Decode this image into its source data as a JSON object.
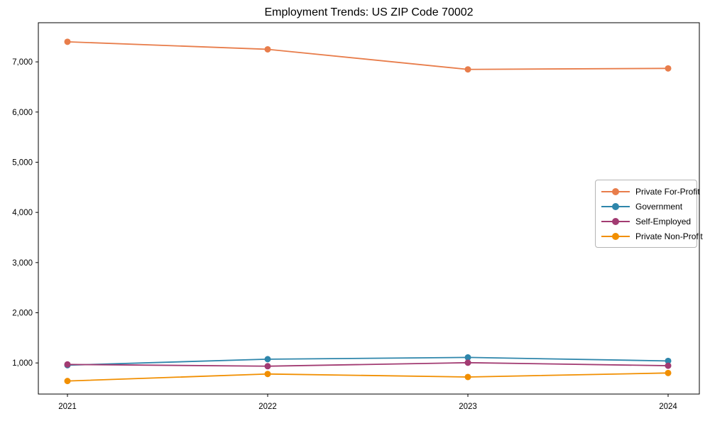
{
  "title": "Employment Trends: US ZIP Code 70002",
  "chart_data": {
    "type": "line",
    "title": "Employment Trends: US ZIP Code 70002",
    "x": [
      2021,
      2022,
      2023,
      2024
    ],
    "xtick_labels": [
      "2021",
      "2022",
      "2023",
      "2024"
    ],
    "series": [
      {
        "name": "Private For-Profit",
        "color": "#E87D4B",
        "values": [
          7400,
          7250,
          6850,
          6870
        ]
      },
      {
        "name": "Government",
        "color": "#2E86AB",
        "values": [
          955,
          1075,
          1110,
          1040
        ]
      },
      {
        "name": "Self-Employed",
        "color": "#A23B72",
        "values": [
          970,
          935,
          1005,
          945
        ]
      },
      {
        "name": "Private Non-Profit",
        "color": "#F18F01",
        "values": [
          640,
          780,
          720,
          800
        ]
      }
    ],
    "yticks": [
      1000,
      2000,
      3000,
      4000,
      5000,
      6000,
      7000
    ],
    "ytick_labels": [
      "1,000",
      "2,000",
      "3,000",
      "4,000",
      "5,000",
      "6,000",
      "7,000"
    ],
    "ylim": [
      380,
      7780
    ],
    "xlabel": "",
    "ylabel": "",
    "grid": false,
    "legend_position": "center-right",
    "axis_color": "#000000",
    "background_color": "#ffffff"
  }
}
